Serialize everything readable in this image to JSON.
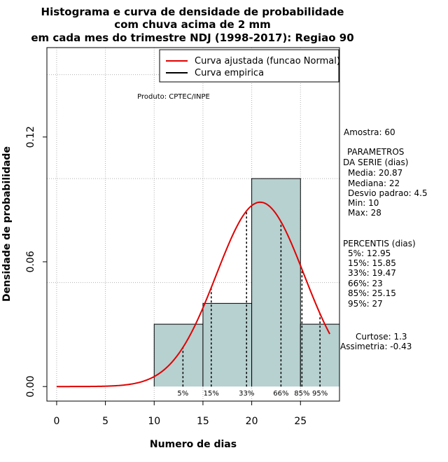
{
  "chart_data": {
    "type": "histogram",
    "title_lines": [
      "Histograma e curva de densidade de probabilidade",
      "com chuva acima de 2 mm",
      "em cada mes do trimestre NDJ (1998-2017): Regiao 90"
    ],
    "xlabel": "Numero de dias",
    "ylabel": "Densidade de probabilidade",
    "xlim": [
      -1,
      29
    ],
    "ylim": [
      -0.007,
      0.163
    ],
    "x_ticks": [
      0,
      5,
      10,
      15,
      20,
      25
    ],
    "y_ticks": [
      0.0,
      0.06,
      0.12
    ],
    "y_tick_labels": [
      "0.00",
      "0.06",
      "0.12"
    ],
    "grid_x": [
      0,
      5,
      10,
      15,
      20,
      25
    ],
    "grid_y": [
      0.05,
      0.1,
      0.15
    ],
    "grid": true,
    "bins": [
      {
        "start": 10,
        "end": 15,
        "density": 0.03
      },
      {
        "start": 15,
        "end": 20,
        "density": 0.04
      },
      {
        "start": 20,
        "end": 25,
        "density": 0.1
      },
      {
        "start": 25,
        "end": 29,
        "density": 0.03
      }
    ],
    "bar_color": "#b7d0d0",
    "normal_curve": {
      "mean": 20.87,
      "sd": 4.5,
      "x_start": 0,
      "x_end": 28,
      "color": "#e00000"
    },
    "percentile_lines": [
      {
        "label": "5%",
        "x": 12.95
      },
      {
        "label": "15%",
        "x": 15.85
      },
      {
        "label": "33%",
        "x": 19.47
      },
      {
        "label": "66%",
        "x": 23
      },
      {
        "label": "85%",
        "x": 25.15
      },
      {
        "label": "95%",
        "x": 27
      }
    ],
    "legend": {
      "placement": "top-right",
      "entries": [
        {
          "label": "Curva ajustada (funcao Normal)",
          "color": "#e00000"
        },
        {
          "label": "Curva empirica",
          "color": "#000000"
        }
      ]
    },
    "product_label": "Produto: CPTEC/INPE",
    "stats": {
      "amostra": "Amostra: 60",
      "param_header": [
        "PARAMETROS",
        "DA SERIE (dias)"
      ],
      "params": [
        "Media: 20.87",
        "Mediana: 22",
        "Desvio padrao: 4.5",
        "Min: 10",
        "Max: 28"
      ],
      "perc_header": "PERCENTIS (dias)",
      "percentis": [
        "5%: 12.95",
        "15%: 15.85",
        "33%: 19.47",
        "66%: 23",
        "85%: 25.15",
        "95%: 27"
      ],
      "curtose": "Curtose: 1.3",
      "assimetria": "Assimetria: -0.43"
    }
  }
}
